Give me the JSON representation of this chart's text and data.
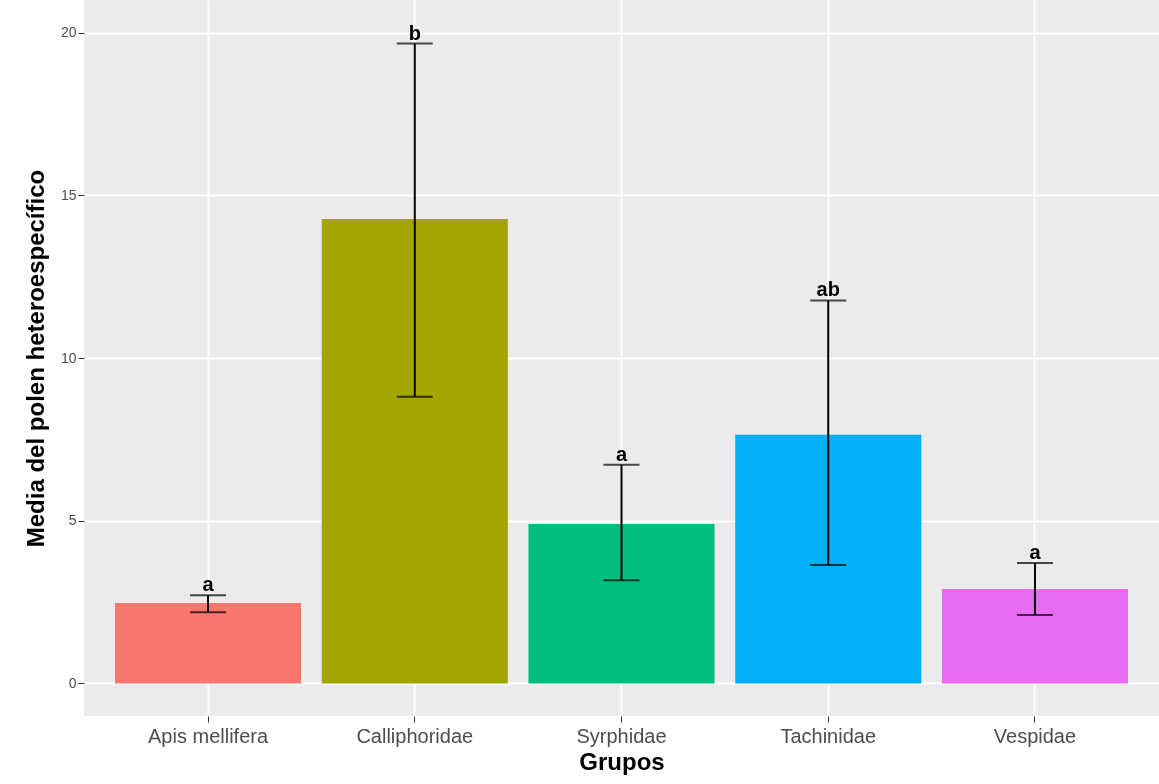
{
  "chart_data": {
    "type": "bar",
    "xlabel": "Grupos",
    "ylabel": "Media del polen heteroespecífico",
    "categories": [
      "Apis mellifera",
      "Calliphoridae",
      "Syrphidae",
      "Tachinidae",
      "Vespidae"
    ],
    "values": [
      2.47,
      14.27,
      4.9,
      7.64,
      2.9
    ],
    "colors": [
      "#f8766d",
      "#a3a500",
      "#00bf7d",
      "#00b0f6",
      "#e76bf3"
    ],
    "errors": [
      [
        2.19,
        2.71
      ],
      [
        8.81,
        19.66
      ],
      [
        3.17,
        6.72
      ],
      [
        3.64,
        11.77
      ],
      [
        2.1,
        3.7
      ]
    ],
    "ylim": [
      -1,
      21
    ],
    "yticks": [
      0,
      5,
      10,
      15,
      20
    ],
    "grid": true,
    "annotations": [
      {
        "text": "a",
        "x": "Apis mellifera",
        "y": 2.71
      },
      {
        "text": "b",
        "x": "Calliphoridae",
        "y": 19.66
      },
      {
        "text": "a",
        "x": "Syrphidae",
        "y": 6.72
      },
      {
        "text": "ab",
        "x": "Tachinidae",
        "y": 11.77
      },
      {
        "text": "a",
        "x": "Vespidae",
        "y": 3.7
      }
    ]
  }
}
